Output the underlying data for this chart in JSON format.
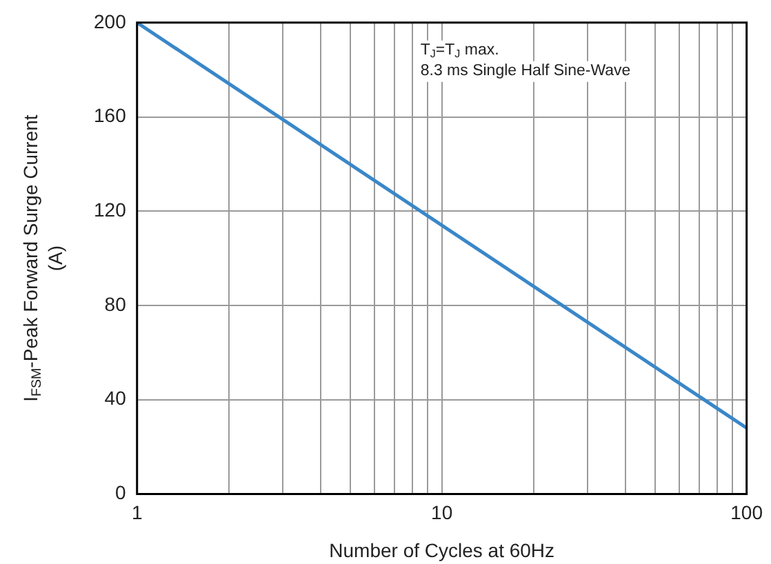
{
  "chart_data": {
    "type": "line",
    "xlabel": "Number of Cycles at 60Hz",
    "ylabel": "I$_{FSM}$-Peak Forward Surge Current\n(A)",
    "annotations": [
      "T$_{J}$=T$_{J}$ max.",
      "8.3 ms Single Half Sine-Wave"
    ],
    "log": "x",
    "x": [
      1,
      100
    ],
    "series": [
      {
        "color": "#3a87c8",
        "values": [
          200,
          28
        ]
      }
    ],
    "xlim": [
      1,
      100
    ],
    "xticks": [
      1,
      {
        "value": 2,
        "label": null
      },
      {
        "value": 3,
        "label": null
      },
      {
        "value": 4,
        "label": null
      },
      {
        "value": 5,
        "label": null
      },
      {
        "value": 6,
        "label": null
      },
      {
        "value": 7,
        "label": null
      },
      {
        "value": 8,
        "label": null
      },
      {
        "value": 9,
        "label": null
      },
      10,
      {
        "value": 20,
        "label": null
      },
      {
        "value": 30,
        "label": null
      },
      {
        "value": 40,
        "label": null
      },
      {
        "value": 50,
        "label": null
      },
      {
        "value": 60,
        "label": null
      },
      {
        "value": 70,
        "label": null
      },
      {
        "value": 80,
        "label": null
      },
      {
        "value": 90,
        "label": null
      },
      100
    ],
    "ylim": [
      0,
      200
    ],
    "yticks": [
      0,
      40,
      80,
      120,
      160,
      200
    ],
    "grid": true,
    "legend": false,
    "marker": "none",
    "line_style": "solid"
  }
}
